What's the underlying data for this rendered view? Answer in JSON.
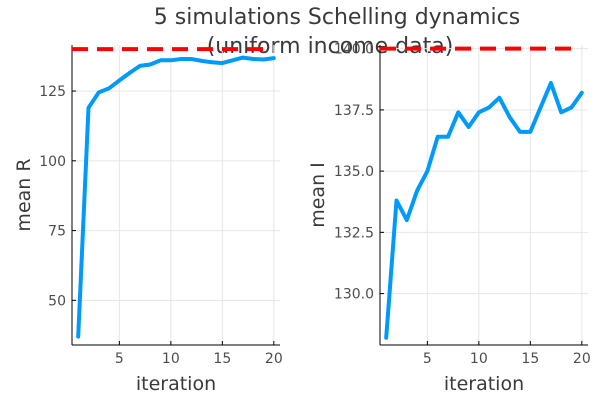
{
  "title_lines": [
    "5 simulations Schelling dynamics",
    "(uniform income data)"
  ],
  "colors": {
    "series": "#009AFA",
    "reference": "#FF0000",
    "text": "#3a3a3a"
  },
  "chart_data": [
    {
      "type": "line",
      "xlabel": "iteration",
      "ylabel": "mean R",
      "xlim": [
        0.4,
        20.6
      ],
      "ylim": [
        34,
        141.5
      ],
      "xticks": [
        5,
        10,
        15,
        20
      ],
      "yticks": [
        50,
        75,
        100,
        125
      ],
      "ytick_labels": [
        "50",
        "75",
        "100",
        "125"
      ],
      "grid": true,
      "legend": "none",
      "reference_line": {
        "y": 140,
        "style": "dashed"
      },
      "series": [
        {
          "x": [
            1,
            2,
            3,
            4,
            5,
            6,
            7,
            8,
            9,
            10,
            11,
            12,
            13,
            14,
            15,
            16,
            17,
            18,
            19,
            20
          ],
          "values": [
            37,
            119,
            124.5,
            126,
            128.8,
            131.5,
            134,
            134.5,
            136,
            136,
            136.5,
            136.5,
            135.8,
            135.3,
            135,
            136,
            137,
            136.5,
            136.3,
            136.8
          ]
        }
      ]
    },
    {
      "type": "line",
      "xlabel": "iteration",
      "ylabel": "mean I",
      "xlim": [
        0.4,
        20.6
      ],
      "ylim": [
        127.9,
        140.15
      ],
      "xticks": [
        5,
        10,
        15,
        20
      ],
      "yticks": [
        130,
        132.5,
        135,
        137.5,
        140
      ],
      "ytick_labels": [
        "130.0",
        "132.5",
        "135.0",
        "137.5",
        "140.0"
      ],
      "grid": true,
      "legend": "none",
      "reference_line": {
        "y": 140,
        "style": "dashed"
      },
      "series": [
        {
          "x": [
            1,
            2,
            3,
            4,
            5,
            6,
            7,
            8,
            9,
            10,
            11,
            12,
            13,
            14,
            15,
            16,
            17,
            18,
            19,
            20
          ],
          "values": [
            128.2,
            133.8,
            133,
            134.2,
            135,
            136.4,
            136.4,
            137.4,
            136.8,
            137.4,
            137.6,
            138,
            137.2,
            136.6,
            136.6,
            137.6,
            138.6,
            137.4,
            137.6,
            138.2
          ]
        }
      ]
    }
  ]
}
